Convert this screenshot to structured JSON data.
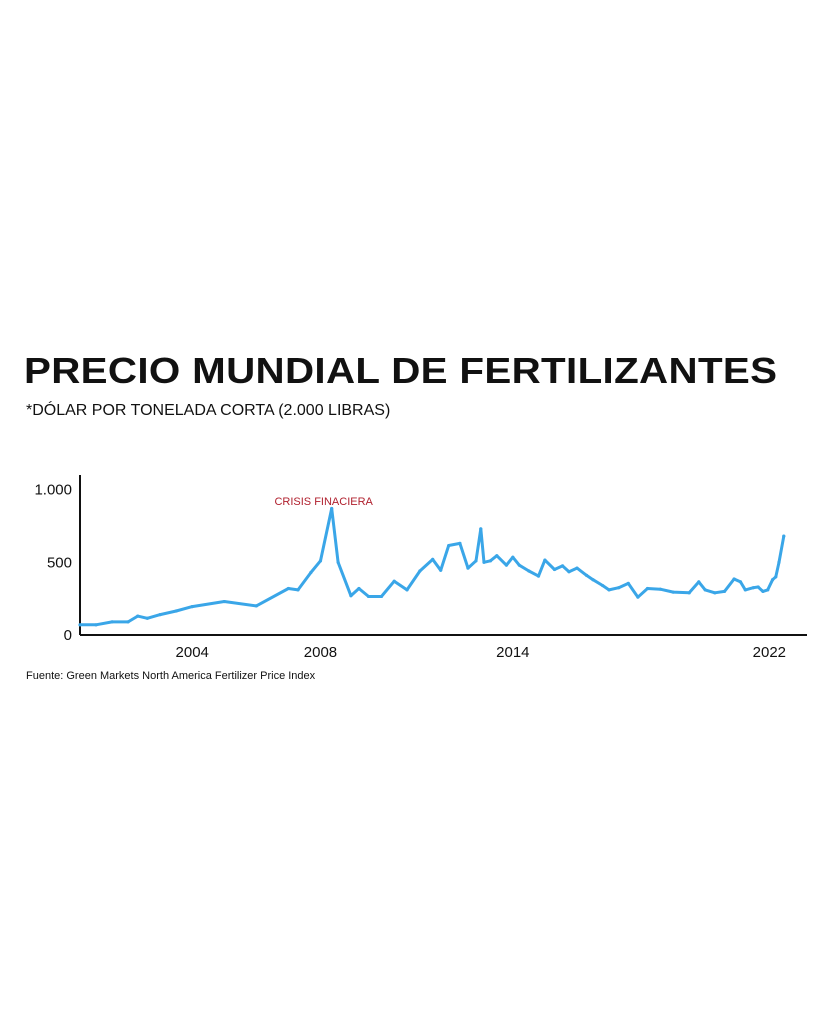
{
  "chart_data": {
    "type": "line",
    "title": "PRECIO MUNDIAL DE FERTILIZANTES",
    "subtitle": "*DÓLAR POR TONELADA CORTA (2.000 LIBRAS)",
    "source": "Fuente: Green Markets North America Fertilizer Price Index",
    "annotation": {
      "text": "CRISIS FINACIERA",
      "x": 2008.1,
      "color": "#b0202e"
    },
    "line_color": "#3aa6e8",
    "ylim": [
      0,
      1100
    ],
    "yticks": [
      {
        "value": 0,
        "label": "0"
      },
      {
        "value": 500,
        "label": "500"
      },
      {
        "value": 1000,
        "label": "1.000"
      }
    ],
    "xlim": [
      2000.5,
      2022.8
    ],
    "xticks": [
      {
        "value": 2004,
        "label": "2004"
      },
      {
        "value": 2008,
        "label": "2008"
      },
      {
        "value": 2014,
        "label": "2014"
      },
      {
        "value": 2022,
        "label": "2022"
      }
    ],
    "grid": false,
    "series": [
      {
        "x": [
          2000.5,
          2001.0,
          2001.5,
          2002.0,
          2002.3,
          2002.6,
          2003.0,
          2003.5,
          2004.0,
          2005.0,
          2006.0,
          2007.0,
          2007.3,
          2007.7,
          2008.0,
          2008.35,
          2008.55,
          2008.95,
          2009.2,
          2009.5,
          2009.9,
          2010.3,
          2010.7,
          2011.1,
          2011.5,
          2011.75,
          2012.0,
          2012.35,
          2012.6,
          2012.85,
          2013.0,
          2013.1,
          2013.3,
          2013.5,
          2013.8,
          2014.0,
          2014.2,
          2014.5,
          2014.8,
          2015.0,
          2015.3,
          2015.55,
          2015.75,
          2016.0,
          2016.3,
          2016.5,
          2016.8,
          2017.0,
          2017.3,
          2017.6,
          2017.9,
          2018.2,
          2018.6,
          2019.0,
          2019.5,
          2019.8,
          2020.0,
          2020.3,
          2020.6,
          2020.9,
          2021.1,
          2021.25,
          2021.5,
          2021.65,
          2021.8,
          2021.95,
          2022.1,
          2022.2,
          2022.3,
          2022.45
        ],
        "y": [
          70,
          70,
          90,
          90,
          130,
          115,
          140,
          165,
          195,
          230,
          200,
          320,
          310,
          430,
          510,
          870,
          500,
          270,
          320,
          265,
          265,
          370,
          310,
          440,
          520,
          445,
          615,
          630,
          460,
          510,
          730,
          500,
          510,
          545,
          480,
          535,
          480,
          440,
          405,
          515,
          450,
          475,
          435,
          460,
          410,
          380,
          340,
          310,
          325,
          355,
          260,
          320,
          315,
          295,
          290,
          365,
          310,
          290,
          300,
          385,
          365,
          310,
          325,
          330,
          300,
          310,
          380,
          400,
          500,
          680
        ]
      }
    ]
  }
}
